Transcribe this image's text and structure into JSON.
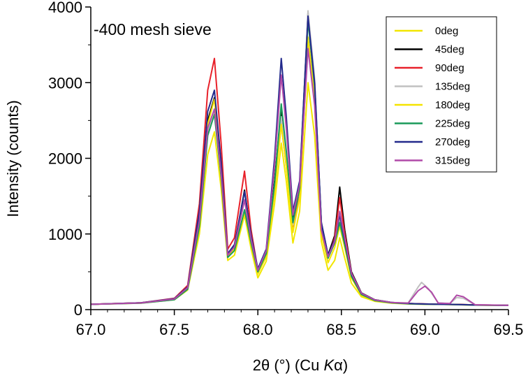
{
  "chart_data": {
    "type": "line",
    "annotation": "-400 mesh sieve",
    "xlabel": "2θ (°) (Cu ",
    "xlabel_italic": "K",
    "xlabel_suffix": "α)",
    "ylabel": "Intensity (counts)",
    "xlim": [
      67.0,
      69.5
    ],
    "ylim": [
      0,
      4000
    ],
    "xticks": [
      "67.0",
      "67.5",
      "68.0",
      "68.5",
      "69.0",
      "69.5"
    ],
    "yticks": [
      "0",
      "1000",
      "2000",
      "3000",
      "4000"
    ],
    "grid": false,
    "legend_position": "top-right",
    "series": [
      {
        "name": "0deg",
        "color": "#f2e600",
        "x": [
          67.0,
          67.3,
          67.5,
          67.58,
          67.65,
          67.7,
          67.74,
          67.78,
          67.82,
          67.86,
          67.92,
          67.96,
          68.0,
          68.05,
          68.1,
          68.14,
          68.17,
          68.21,
          68.25,
          68.3,
          68.34,
          68.38,
          68.42,
          68.46,
          68.49,
          68.52,
          68.56,
          68.62,
          68.7,
          68.8,
          68.9,
          69.0,
          69.1,
          69.2,
          69.3,
          69.5
        ],
        "y": [
          70,
          85,
          130,
          260,
          1000,
          2050,
          2350,
          1600,
          650,
          720,
          1250,
          800,
          420,
          640,
          1400,
          2200,
          1700,
          880,
          1300,
          3000,
          2300,
          900,
          520,
          650,
          950,
          680,
          350,
          170,
          110,
          85,
          75,
          70,
          70,
          65,
          60,
          55
        ]
      },
      {
        "name": "45deg",
        "color": "#000000",
        "x": [
          67.0,
          67.3,
          67.5,
          67.58,
          67.65,
          67.7,
          67.74,
          67.78,
          67.82,
          67.86,
          67.92,
          67.96,
          68.0,
          68.05,
          68.1,
          68.14,
          68.17,
          68.21,
          68.25,
          68.3,
          68.34,
          68.38,
          68.42,
          68.46,
          68.49,
          68.52,
          68.56,
          68.62,
          68.7,
          68.8,
          68.9,
          69.0,
          69.1,
          69.2,
          69.3,
          69.5
        ],
        "y": [
          70,
          90,
          140,
          290,
          1200,
          2500,
          2800,
          1900,
          720,
          830,
          1580,
          960,
          520,
          780,
          1700,
          2650,
          2050,
          1180,
          1650,
          3920,
          3000,
          1150,
          720,
          980,
          1620,
          1050,
          500,
          220,
          130,
          95,
          80,
          75,
          70,
          68,
          62,
          58
        ]
      },
      {
        "name": "90deg",
        "color": "#e8212a",
        "x": [
          67.0,
          67.3,
          67.5,
          67.58,
          67.65,
          67.7,
          67.74,
          67.78,
          67.82,
          67.86,
          67.92,
          67.96,
          68.0,
          68.05,
          68.1,
          68.14,
          68.17,
          68.21,
          68.25,
          68.3,
          68.34,
          68.38,
          68.42,
          68.46,
          68.49,
          68.52,
          68.56,
          68.62,
          68.7,
          68.8,
          68.9,
          69.0,
          69.1,
          69.2,
          69.3,
          69.5
        ],
        "y": [
          70,
          90,
          150,
          320,
          1400,
          2900,
          3320,
          2200,
          800,
          950,
          1830,
          1050,
          520,
          760,
          1600,
          2450,
          1900,
          1080,
          1500,
          3600,
          2800,
          1050,
          680,
          950,
          1480,
          1000,
          480,
          210,
          125,
          92,
          80,
          75,
          70,
          68,
          62,
          58
        ]
      },
      {
        "name": "135deg",
        "color": "#c0c0c0",
        "x": [
          67.0,
          67.3,
          67.5,
          67.58,
          67.65,
          67.7,
          67.74,
          67.78,
          67.82,
          67.86,
          67.92,
          67.96,
          68.0,
          68.05,
          68.1,
          68.14,
          68.17,
          68.21,
          68.25,
          68.3,
          68.34,
          68.38,
          68.42,
          68.46,
          68.49,
          68.52,
          68.56,
          68.62,
          68.7,
          68.8,
          68.9,
          68.96,
          68.98,
          69.02,
          69.08,
          69.15,
          69.19,
          69.23,
          69.3,
          69.5
        ],
        "y": [
          70,
          88,
          140,
          290,
          1150,
          2350,
          2650,
          1800,
          720,
          820,
          1450,
          920,
          520,
          760,
          1650,
          2550,
          1980,
          1120,
          1620,
          3950,
          3050,
          1100,
          700,
          900,
          1200,
          900,
          460,
          210,
          125,
          92,
          90,
          300,
          360,
          280,
          90,
          80,
          160,
          150,
          65,
          58
        ]
      },
      {
        "name": "180deg",
        "color": "#f5e300",
        "x": [
          67.0,
          67.3,
          67.5,
          67.58,
          67.65,
          67.7,
          67.74,
          67.78,
          67.82,
          67.86,
          67.92,
          67.96,
          68.0,
          68.05,
          68.1,
          68.14,
          68.17,
          68.21,
          68.25,
          68.3,
          68.34,
          68.38,
          68.42,
          68.46,
          68.49,
          68.52,
          68.56,
          68.62,
          68.7,
          68.8,
          68.9,
          69.0,
          69.1,
          69.2,
          69.3,
          69.5
        ],
        "y": [
          70,
          88,
          135,
          280,
          1150,
          2450,
          2780,
          1850,
          700,
          800,
          1300,
          880,
          470,
          700,
          1550,
          2450,
          1900,
          1020,
          1480,
          3600,
          2800,
          1000,
          620,
          820,
          1100,
          820,
          420,
          190,
          115,
          88,
          78,
          72,
          70,
          66,
          60,
          55
        ]
      },
      {
        "name": "225deg",
        "color": "#1a9a5a",
        "x": [
          67.0,
          67.3,
          67.5,
          67.58,
          67.65,
          67.7,
          67.74,
          67.78,
          67.82,
          67.86,
          67.92,
          67.96,
          68.0,
          68.05,
          68.1,
          68.14,
          68.17,
          68.21,
          68.25,
          68.3,
          68.34,
          68.38,
          68.42,
          68.46,
          68.49,
          68.52,
          68.56,
          68.62,
          68.7,
          68.8,
          68.9,
          69.0,
          69.1,
          69.2,
          69.3,
          69.5
        ],
        "y": [
          70,
          85,
          130,
          270,
          1100,
          2300,
          2580,
          1750,
          690,
          780,
          1320,
          880,
          500,
          740,
          1650,
          2720,
          2100,
          1150,
          1600,
          3820,
          2950,
          1080,
          680,
          880,
          1150,
          860,
          440,
          200,
          120,
          90,
          78,
          72,
          70,
          66,
          60,
          55
        ]
      },
      {
        "name": "270deg",
        "color": "#232a8c",
        "x": [
          67.0,
          67.3,
          67.5,
          67.58,
          67.65,
          67.7,
          67.74,
          67.78,
          67.82,
          67.86,
          67.92,
          67.96,
          68.0,
          68.05,
          68.1,
          68.14,
          68.17,
          68.21,
          68.25,
          68.3,
          68.34,
          68.38,
          68.42,
          68.46,
          68.49,
          68.52,
          68.56,
          68.62,
          68.7,
          68.8,
          68.9,
          69.0,
          69.1,
          69.2,
          69.3,
          69.5
        ],
        "y": [
          70,
          90,
          145,
          300,
          1300,
          2620,
          2900,
          1950,
          740,
          860,
          1560,
          980,
          540,
          800,
          2000,
          3320,
          2550,
          1300,
          1700,
          3880,
          3000,
          1150,
          720,
          920,
          1250,
          920,
          470,
          215,
          128,
          94,
          80,
          74,
          70,
          67,
          61,
          56
        ]
      },
      {
        "name": "315deg",
        "color": "#b04aa8",
        "x": [
          67.0,
          67.3,
          67.5,
          67.58,
          67.65,
          67.7,
          67.74,
          67.78,
          67.82,
          67.86,
          67.92,
          67.96,
          68.0,
          68.05,
          68.1,
          68.14,
          68.17,
          68.21,
          68.25,
          68.3,
          68.34,
          68.38,
          68.42,
          68.46,
          68.49,
          68.52,
          68.56,
          68.62,
          68.7,
          68.8,
          68.9,
          68.96,
          69.0,
          69.04,
          69.08,
          69.15,
          69.19,
          69.23,
          69.3,
          69.5
        ],
        "y": [
          70,
          88,
          140,
          290,
          1180,
          2400,
          2650,
          1800,
          720,
          830,
          1450,
          930,
          520,
          780,
          1900,
          3100,
          2400,
          1250,
          1650,
          3450,
          2700,
          1050,
          700,
          900,
          1300,
          950,
          480,
          215,
          128,
          94,
          85,
          250,
          310,
          230,
          85,
          80,
          190,
          170,
          65,
          56
        ]
      }
    ]
  }
}
